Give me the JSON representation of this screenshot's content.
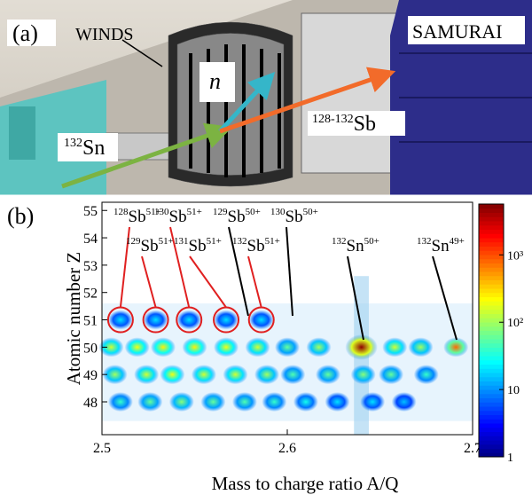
{
  "panel_a": {
    "label": "(a)",
    "detector": "WINDS",
    "spectrometer": "SAMURAI",
    "neutron": "n",
    "beam": {
      "mass": "132",
      "element": "Sn"
    },
    "fragment": {
      "mass": "128-132",
      "element": "Sb"
    }
  },
  "chart_data": {
    "type": "heatmap",
    "label": "(b)",
    "xlabel": "Mass to charge ratio A/Q",
    "ylabel": "Atomic number Z",
    "xlim": [
      2.5,
      2.7
    ],
    "xticks": [
      2.5,
      2.6,
      2.7
    ],
    "ylim": [
      46.8,
      55.3
    ],
    "yticks": [
      48,
      49,
      50,
      51,
      52,
      53,
      54,
      55
    ],
    "colormap": "jet",
    "color_scale": "log",
    "clim": [
      1,
      5700
    ],
    "cticks": [
      1,
      10,
      {
        "value": 100,
        "label": "10²"
      },
      {
        "value": 1000,
        "label": "10³"
      }
    ],
    "x": [
      2.51,
      2.529,
      2.547,
      2.567,
      2.586,
      2.505,
      2.519,
      2.533,
      2.55,
      2.567,
      2.584,
      2.6,
      2.617,
      2.64,
      2.658,
      2.672,
      2.691,
      2.507,
      2.524,
      2.538,
      2.555,
      2.572,
      2.589,
      2.603,
      2.622,
      2.641,
      2.656,
      2.675,
      2.51,
      2.526,
      2.543,
      2.56,
      2.577,
      2.593,
      2.61,
      2.627,
      2.646,
      2.663
    ],
    "y": [
      51,
      51,
      51,
      51,
      51,
      50,
      50,
      50,
      50,
      50,
      50,
      50,
      50,
      50,
      50,
      50,
      50,
      49,
      49,
      49,
      49,
      49,
      49,
      49,
      49,
      49,
      49,
      49,
      48,
      48,
      48,
      48,
      48,
      48,
      48,
      48,
      48,
      48
    ],
    "values": [
      20,
      20,
      20,
      20,
      20,
      150,
      200,
      250,
      250,
      200,
      150,
      60,
      100,
      5000,
      150,
      100,
      800,
      100,
      150,
      200,
      150,
      150,
      100,
      50,
      60,
      80,
      60,
      40,
      40,
      60,
      80,
      60,
      50,
      40,
      30,
      20,
      20,
      15
    ],
    "annotations": [
      {
        "mass": "128",
        "element": "Sb",
        "charge": "51+",
        "color": "#e02020"
      },
      {
        "mass": "129",
        "element": "Sb",
        "charge": "51+",
        "color": "#e02020"
      },
      {
        "mass": "130",
        "element": "Sb",
        "charge": "51+",
        "color": "#e02020"
      },
      {
        "mass": "131",
        "element": "Sb",
        "charge": "51+",
        "color": "#e02020"
      },
      {
        "mass": "129",
        "element": "Sb",
        "charge": "50+",
        "color": "#000000"
      },
      {
        "mass": "132",
        "element": "Sb",
        "charge": "51+",
        "color": "#e02020"
      },
      {
        "mass": "130",
        "element": "Sb",
        "charge": "50+",
        "color": "#000000"
      },
      {
        "mass": "132",
        "element": "Sn",
        "charge": "50+",
        "color": "#000000"
      },
      {
        "mass": "132",
        "element": "Sn",
        "charge": "49+",
        "color": "#000000"
      }
    ]
  }
}
